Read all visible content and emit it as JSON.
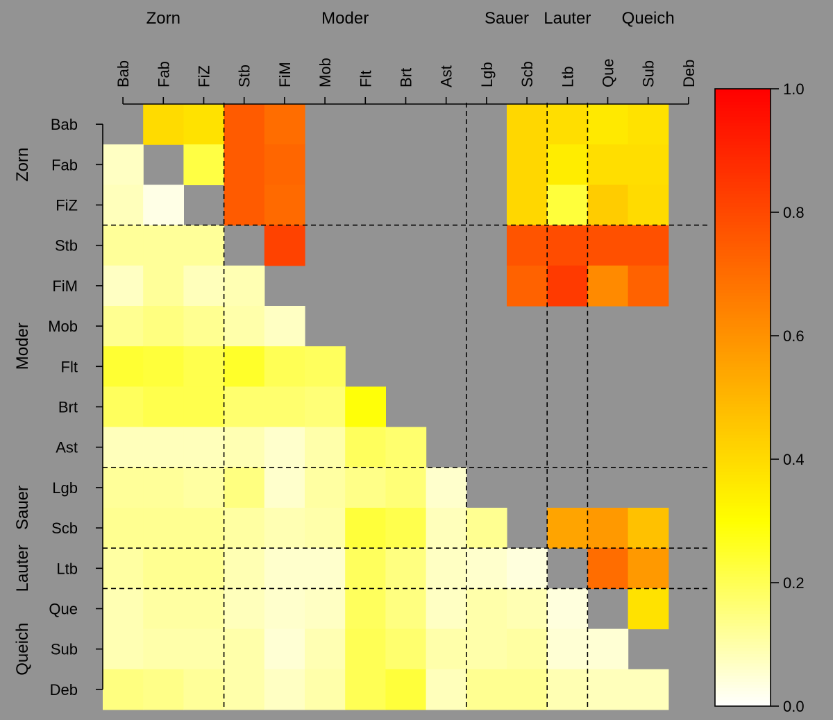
{
  "chart_data": {
    "type": "heatmap",
    "labels": [
      "Bab",
      "Fab",
      "FiZ",
      "Stb",
      "FiM",
      "Mob",
      "Flt",
      "Brt",
      "Ast",
      "Lgb",
      "Scb",
      "Ltb",
      "Que",
      "Sub",
      "Deb"
    ],
    "groups": [
      {
        "name": "Zorn",
        "start": 0,
        "end": 2
      },
      {
        "name": "Moder",
        "start": 3,
        "end": 8
      },
      {
        "name": "Sauer",
        "start": 9,
        "end": 10
      },
      {
        "name": "Lauter",
        "start": 11,
        "end": 11
      },
      {
        "name": "Queich",
        "start": 12,
        "end": 14
      }
    ],
    "legend_ticks": [
      "0.0",
      "0.2",
      "0.4",
      "0.6",
      "0.8",
      "1.0"
    ],
    "range": [
      0,
      1
    ],
    "colors": {
      "low": "#ffffff",
      "mid": "#ffff00",
      "high": "#ff0000",
      "missing": "#939393"
    },
    "upper": [
      [
        null,
        0.4,
        0.38,
        0.75,
        0.7,
        null,
        null,
        null,
        null,
        null,
        0.41,
        0.39,
        0.36,
        0.38,
        null
      ],
      [
        null,
        null,
        0.22,
        0.75,
        0.72,
        null,
        null,
        null,
        null,
        null,
        0.41,
        0.35,
        0.39,
        0.39,
        null
      ],
      [
        null,
        null,
        null,
        0.75,
        0.71,
        null,
        null,
        null,
        null,
        null,
        0.41,
        0.23,
        0.44,
        0.4,
        null
      ],
      [
        null,
        null,
        null,
        null,
        0.82,
        null,
        null,
        null,
        null,
        null,
        0.77,
        0.79,
        0.78,
        0.78,
        null
      ],
      [
        null,
        null,
        null,
        null,
        null,
        null,
        null,
        null,
        null,
        null,
        0.73,
        0.84,
        0.62,
        0.73,
        null
      ],
      [
        null,
        null,
        null,
        null,
        null,
        null,
        null,
        null,
        null,
        null,
        null,
        null,
        null,
        null,
        null
      ],
      [
        null,
        null,
        null,
        null,
        null,
        null,
        null,
        null,
        null,
        null,
        null,
        null,
        null,
        null,
        null
      ],
      [
        null,
        null,
        null,
        null,
        null,
        null,
        null,
        null,
        null,
        null,
        null,
        null,
        null,
        null,
        null
      ],
      [
        null,
        null,
        null,
        null,
        null,
        null,
        null,
        null,
        null,
        null,
        null,
        null,
        null,
        null,
        null
      ],
      [
        null,
        null,
        null,
        null,
        null,
        null,
        null,
        null,
        null,
        null,
        null,
        null,
        null,
        null,
        null
      ],
      [
        null,
        null,
        null,
        null,
        null,
        null,
        null,
        null,
        null,
        null,
        null,
        0.55,
        0.58,
        0.47,
        null
      ],
      [
        null,
        null,
        null,
        null,
        null,
        null,
        null,
        null,
        null,
        null,
        null,
        null,
        0.7,
        0.58,
        null
      ],
      [
        null,
        null,
        null,
        null,
        null,
        null,
        null,
        null,
        null,
        null,
        null,
        null,
        null,
        0.38,
        null
      ],
      [
        null,
        null,
        null,
        null,
        null,
        null,
        null,
        null,
        null,
        null,
        null,
        null,
        null,
        null,
        null
      ],
      [
        null,
        null,
        null,
        null,
        null,
        null,
        null,
        null,
        null,
        null,
        null,
        null,
        null,
        null,
        null
      ]
    ],
    "lower": [
      [
        null,
        null,
        null,
        null,
        null,
        null,
        null,
        null,
        null,
        null,
        null,
        null,
        null,
        null,
        null
      ],
      [
        0.07,
        null,
        null,
        null,
        null,
        null,
        null,
        null,
        null,
        null,
        null,
        null,
        null,
        null,
        null
      ],
      [
        0.08,
        0.03,
        null,
        null,
        null,
        null,
        null,
        null,
        null,
        null,
        null,
        null,
        null,
        null,
        null
      ],
      [
        0.12,
        0.12,
        0.12,
        null,
        null,
        null,
        null,
        null,
        null,
        null,
        null,
        null,
        null,
        null,
        null
      ],
      [
        0.07,
        0.12,
        0.08,
        0.09,
        null,
        null,
        null,
        null,
        null,
        null,
        null,
        null,
        null,
        null,
        null
      ],
      [
        0.13,
        0.15,
        0.13,
        0.1,
        0.07,
        null,
        null,
        null,
        null,
        null,
        null,
        null,
        null,
        null,
        null
      ],
      [
        0.24,
        0.23,
        0.21,
        0.25,
        0.2,
        0.19,
        null,
        null,
        null,
        null,
        null,
        null,
        null,
        null,
        null
      ],
      [
        0.19,
        0.21,
        0.21,
        0.17,
        0.17,
        0.16,
        0.29,
        null,
        null,
        null,
        null,
        null,
        null,
        null,
        null
      ],
      [
        0.08,
        0.08,
        0.08,
        0.09,
        0.06,
        0.1,
        0.19,
        0.17,
        null,
        null,
        null,
        null,
        null,
        null,
        null
      ],
      [
        0.12,
        0.12,
        0.11,
        0.15,
        0.06,
        0.11,
        0.14,
        0.16,
        0.06,
        null,
        null,
        null,
        null,
        null,
        null
      ],
      [
        0.13,
        0.13,
        0.13,
        0.11,
        0.09,
        0.1,
        0.23,
        0.21,
        0.08,
        0.13,
        null,
        null,
        null,
        null,
        null
      ],
      [
        0.11,
        0.13,
        0.13,
        0.09,
        0.06,
        0.06,
        0.19,
        0.15,
        0.07,
        0.06,
        0.04,
        null,
        null,
        null,
        null
      ],
      [
        0.09,
        0.11,
        0.11,
        0.08,
        0.06,
        0.07,
        0.19,
        0.15,
        0.07,
        0.1,
        0.09,
        0.04,
        null,
        null,
        null
      ],
      [
        0.09,
        0.1,
        0.1,
        0.1,
        0.05,
        0.09,
        0.2,
        0.17,
        0.1,
        0.1,
        0.11,
        0.05,
        0.05,
        null,
        null
      ],
      [
        0.15,
        0.14,
        0.12,
        0.1,
        0.07,
        0.1,
        0.2,
        0.23,
        0.08,
        0.13,
        0.13,
        0.09,
        0.08,
        0.08,
        null
      ]
    ]
  }
}
